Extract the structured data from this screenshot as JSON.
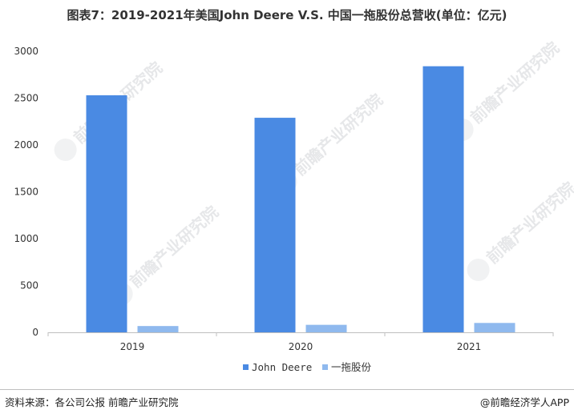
{
  "header": {
    "title": "图表7：2019-2021年美国John Deere V.S. 中国一拖股份总营收(单位：亿元)"
  },
  "chart_data": {
    "type": "bar",
    "categories": [
      "2019",
      "2020",
      "2021"
    ],
    "series": [
      {
        "name": "John Deere",
        "color": "#4a8ae3",
        "values": [
          2530,
          2290,
          2840
        ]
      },
      {
        "name": "一拖股份",
        "color": "#8fb9ee",
        "values": [
          67,
          80,
          100
        ]
      }
    ],
    "ylim": [
      0,
      3000
    ],
    "yticks": [
      0,
      500,
      1000,
      1500,
      2000,
      2500,
      3000
    ],
    "grid": false,
    "legend": "bottom-center"
  },
  "watermark": {
    "text": "前瞻产业研究院"
  },
  "footer": {
    "source": "资料来源：各公司公报 前瞻产业研究院",
    "credit": "@前瞻经济学人APP"
  }
}
